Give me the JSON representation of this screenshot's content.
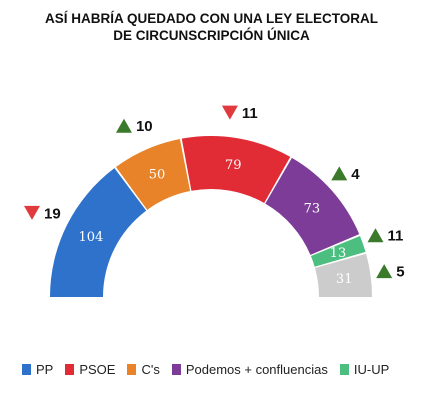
{
  "chart_data": {
    "type": "parliament-semicircle",
    "title_lines": [
      "ASÍ HABRÍA QUEDADO CON UNA LEY ELECTORAL",
      "DE CIRCUNSCRIPCIÓN ÚNICA"
    ],
    "series": [
      {
        "name": "PP",
        "value": 104,
        "change": 19,
        "direction": "down",
        "color": "#2f72cc"
      },
      {
        "name": "C's",
        "value": 50,
        "change": 10,
        "direction": "up",
        "color": "#e8832a"
      },
      {
        "name": "PSOE",
        "value": 79,
        "change": 11,
        "direction": "down",
        "color": "#e12b35"
      },
      {
        "name": "Podemos + confluencias",
        "value": 73,
        "change": 4,
        "direction": "up",
        "color": "#7d3c98"
      },
      {
        "name": "IU-UP",
        "value": 13,
        "change": 11,
        "direction": "up",
        "color": "#4cbf80"
      },
      {
        "name": "",
        "value": 31,
        "change": 5,
        "direction": "up",
        "color": "#cccccc"
      }
    ],
    "legend": [
      {
        "label": "PP",
        "color": "#2f72cc"
      },
      {
        "label": "PSOE",
        "color": "#e12b35"
      },
      {
        "label": "C's",
        "color": "#e8832a"
      },
      {
        "label": "Podemos + confluencias",
        "color": "#7d3c98"
      },
      {
        "label": "IU-UP",
        "color": "#4cbf80"
      }
    ],
    "colors": {
      "up": "#3b7a2a",
      "down": "#e0393e"
    }
  }
}
